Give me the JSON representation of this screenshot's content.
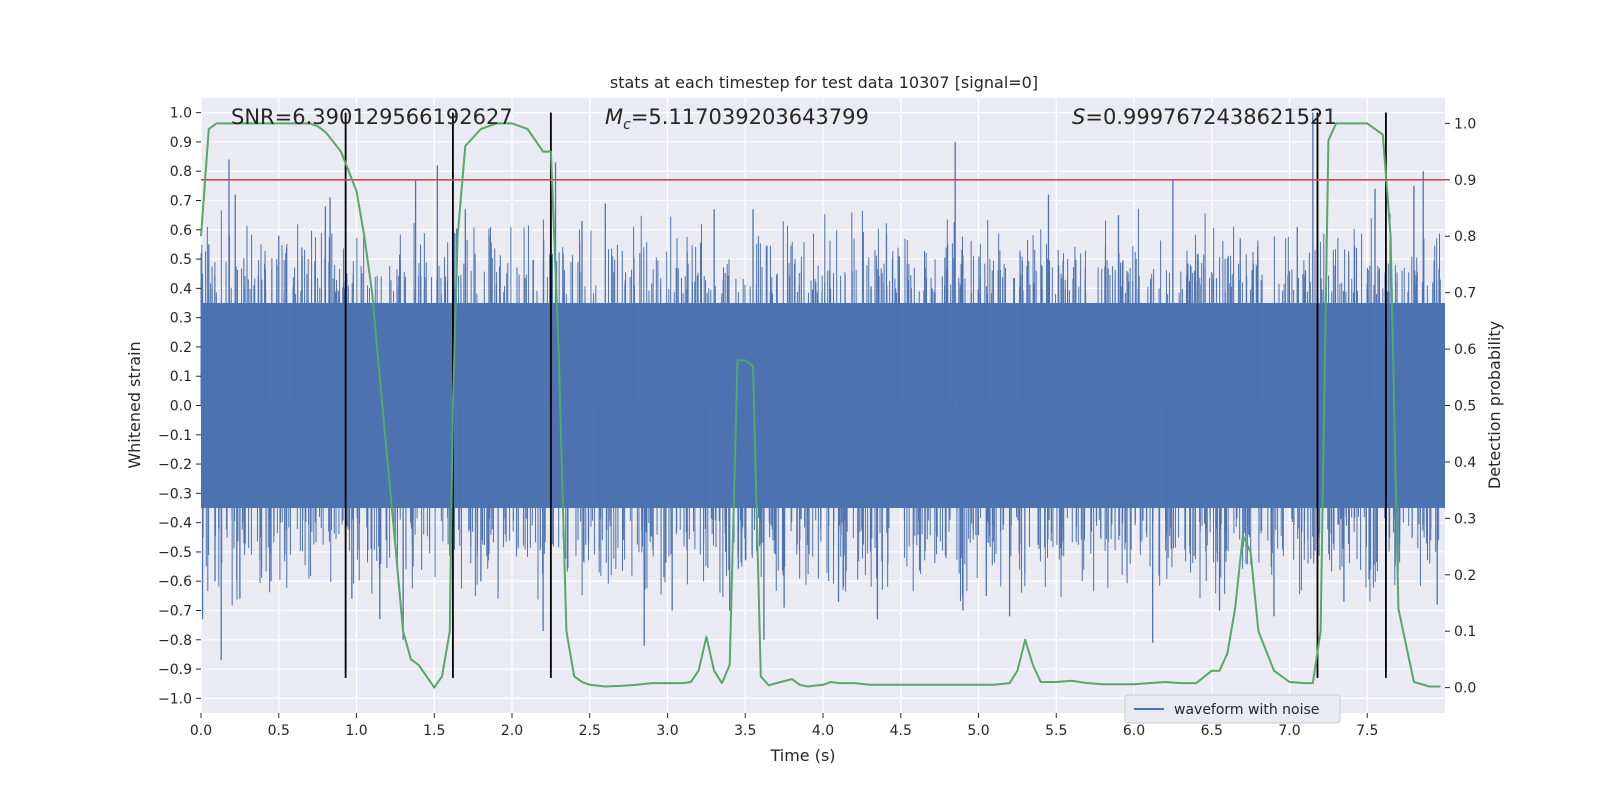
{
  "chart_data": {
    "type": "line",
    "title": "stats at each timestep for test data 10307 [signal=0]",
    "xlabel": "Time (s)",
    "ylabel": "Whitened strain",
    "y2label": "Detection probability",
    "xlim": [
      0,
      8
    ],
    "ylim": [
      -1.05,
      1.05
    ],
    "y2lim": [
      -0.045,
      1.045
    ],
    "xticks": [
      "0.0",
      "0.5",
      "1.0",
      "1.5",
      "2.0",
      "2.5",
      "3.0",
      "3.5",
      "4.0",
      "4.5",
      "5.0",
      "5.5",
      "6.0",
      "6.5",
      "7.0",
      "7.5"
    ],
    "yticks": [
      "1.0",
      "0.9",
      "0.8",
      "0.7",
      "0.6",
      "0.5",
      "0.4",
      "0.3",
      "0.2",
      "0.1",
      "0.0",
      "−0.1",
      "−0.2",
      "−0.3",
      "−0.4",
      "−0.5",
      "−0.6",
      "−0.7",
      "−0.8",
      "−0.9",
      "−1.0"
    ],
    "y2ticks": [
      "0.0",
      "0.1",
      "0.2",
      "0.3",
      "0.4",
      "0.5",
      "0.6",
      "0.7",
      "0.8",
      "0.9",
      "1.0"
    ],
    "grid": true,
    "legend_position": "lower-right",
    "annotations": {
      "snr": "SNR=6.390129566192627",
      "mc_symbol": "M",
      "mc_sub": "c",
      "mc_value": "=5.117039203643799",
      "s_symbol": "S",
      "s_value": "=0.9997672438621521"
    },
    "series": [
      {
        "name": "waveform with noise",
        "color": "#4c72b0",
        "core_amplitude": 0.35,
        "peaks": [
          {
            "x": 0.01,
            "y": -0.73
          },
          {
            "x": 0.05,
            "y": 0.55
          },
          {
            "x": 0.09,
            "y": -0.6
          },
          {
            "x": 0.13,
            "y": -0.87
          },
          {
            "x": 0.18,
            "y": 0.84
          },
          {
            "x": 0.22,
            "y": 0.72
          },
          {
            "x": 0.25,
            "y": -0.66
          },
          {
            "x": 0.45,
            "y": -0.6
          },
          {
            "x": 0.5,
            "y": 0.58
          },
          {
            "x": 0.8,
            "y": 0.68
          },
          {
            "x": 0.83,
            "y": 0.71
          },
          {
            "x": 0.97,
            "y": -0.66
          },
          {
            "x": 1.15,
            "y": -0.73
          },
          {
            "x": 1.3,
            "y": -0.8
          },
          {
            "x": 1.38,
            "y": 0.77
          },
          {
            "x": 1.52,
            "y": 0.82
          },
          {
            "x": 1.7,
            "y": 0.67
          },
          {
            "x": 1.8,
            "y": -0.6
          },
          {
            "x": 2.2,
            "y": -0.77
          },
          {
            "x": 2.28,
            "y": 0.83
          },
          {
            "x": 2.45,
            "y": 0.63
          },
          {
            "x": 2.6,
            "y": 0.69
          },
          {
            "x": 2.85,
            "y": -0.82
          },
          {
            "x": 3.03,
            "y": -0.7
          },
          {
            "x": 3.3,
            "y": 0.67
          },
          {
            "x": 3.4,
            "y": -0.7
          },
          {
            "x": 3.55,
            "y": 0.67
          },
          {
            "x": 3.62,
            "y": -0.8
          },
          {
            "x": 3.75,
            "y": -0.69
          },
          {
            "x": 4.1,
            "y": -0.67
          },
          {
            "x": 4.35,
            "y": -0.73
          },
          {
            "x": 4.85,
            "y": 0.9
          },
          {
            "x": 4.9,
            "y": -0.7
          },
          {
            "x": 5.05,
            "y": -0.65
          },
          {
            "x": 5.2,
            "y": -0.72
          },
          {
            "x": 5.45,
            "y": 0.72
          },
          {
            "x": 5.9,
            "y": 0.65
          },
          {
            "x": 6.12,
            "y": -0.81
          },
          {
            "x": 6.25,
            "y": 0.77
          },
          {
            "x": 6.55,
            "y": -0.7
          },
          {
            "x": 6.9,
            "y": -0.72
          },
          {
            "x": 7.05,
            "y": 0.61
          },
          {
            "x": 7.15,
            "y": 1.0
          },
          {
            "x": 7.18,
            "y": 1.0
          },
          {
            "x": 7.35,
            "y": -0.67
          },
          {
            "x": 7.55,
            "y": 0.74
          },
          {
            "x": 7.8,
            "y": 0.75
          },
          {
            "x": 7.86,
            "y": 0.8
          },
          {
            "x": 7.95,
            "y": -0.68
          }
        ]
      },
      {
        "name": "",
        "color": "#55a868",
        "axis": "right",
        "x": [
          0.0,
          0.05,
          0.1,
          0.2,
          0.3,
          0.4,
          0.5,
          0.6,
          0.7,
          0.75,
          0.8,
          0.9,
          1.0,
          1.05,
          1.1,
          1.15,
          1.2,
          1.25,
          1.3,
          1.35,
          1.4,
          1.45,
          1.5,
          1.55,
          1.6,
          1.62,
          1.65,
          1.7,
          1.8,
          1.9,
          2.0,
          2.1,
          2.2,
          2.25,
          2.3,
          2.35,
          2.4,
          2.45,
          2.5,
          2.6,
          2.7,
          2.8,
          2.9,
          3.0,
          3.1,
          3.15,
          3.2,
          3.25,
          3.3,
          3.35,
          3.4,
          3.45,
          3.5,
          3.55,
          3.6,
          3.65,
          3.7,
          3.8,
          3.85,
          3.9,
          4.0,
          4.05,
          4.1,
          4.2,
          4.3,
          4.5,
          4.7,
          4.9,
          5.1,
          5.2,
          5.25,
          5.3,
          5.35,
          5.4,
          5.5,
          5.6,
          5.7,
          5.8,
          5.9,
          6.0,
          6.1,
          6.2,
          6.3,
          6.4,
          6.5,
          6.55,
          6.6,
          6.65,
          6.7,
          6.75,
          6.8,
          6.9,
          7.0,
          7.1,
          7.15,
          7.2,
          7.25,
          7.3,
          7.4,
          7.5,
          7.6,
          7.65,
          7.7,
          7.8,
          7.9,
          7.97
        ],
        "y": [
          0.8,
          0.99,
          1.0,
          1.0,
          1.0,
          1.0,
          1.0,
          1.0,
          1.0,
          0.995,
          0.985,
          0.95,
          0.88,
          0.8,
          0.7,
          0.55,
          0.4,
          0.25,
          0.1,
          0.05,
          0.04,
          0.02,
          0.0,
          0.02,
          0.1,
          0.5,
          0.8,
          0.96,
          0.99,
          1.0,
          1.0,
          0.99,
          0.95,
          0.95,
          0.6,
          0.1,
          0.02,
          0.01,
          0.005,
          0.002,
          0.003,
          0.005,
          0.008,
          0.008,
          0.008,
          0.01,
          0.03,
          0.09,
          0.03,
          0.008,
          0.04,
          0.58,
          0.58,
          0.57,
          0.02,
          0.004,
          0.008,
          0.015,
          0.005,
          0.002,
          0.005,
          0.01,
          0.008,
          0.008,
          0.005,
          0.005,
          0.005,
          0.005,
          0.005,
          0.008,
          0.03,
          0.085,
          0.04,
          0.01,
          0.01,
          0.012,
          0.008,
          0.006,
          0.006,
          0.006,
          0.008,
          0.01,
          0.008,
          0.008,
          0.03,
          0.03,
          0.06,
          0.14,
          0.27,
          0.24,
          0.1,
          0.03,
          0.01,
          0.008,
          0.008,
          0.1,
          0.97,
          1.0,
          1.0,
          1.0,
          0.98,
          0.8,
          0.14,
          0.01,
          0.002,
          0.002
        ]
      }
    ],
    "threshold": {
      "axis": "right",
      "y": 0.9,
      "color": "#c44e52"
    },
    "vlines": [
      0.93,
      1.62,
      2.25,
      7.18,
      7.62
    ]
  }
}
